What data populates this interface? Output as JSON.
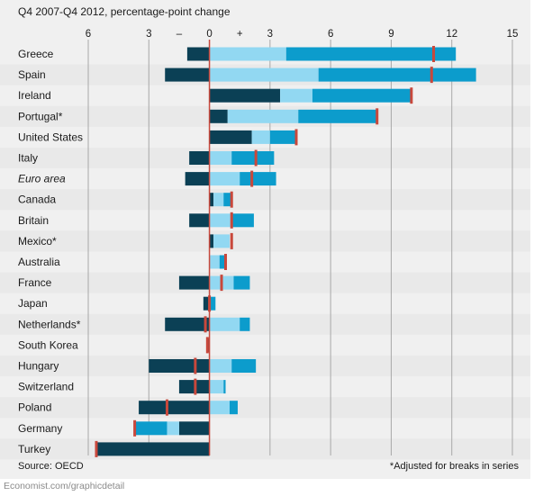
{
  "chart_data": {
    "type": "bar",
    "subtitle": "Q4 2007-Q4 2012, percentage-point change",
    "xlim": [
      -6,
      15
    ],
    "ticks": [
      {
        "value": -6,
        "label": "6"
      },
      {
        "value": -3,
        "label": "3"
      },
      {
        "value": -1.5,
        "label": "–"
      },
      {
        "value": 0,
        "label": "0"
      },
      {
        "value": 1.5,
        "label": "+"
      },
      {
        "value": 3,
        "label": "3"
      },
      {
        "value": 6,
        "label": "6"
      },
      {
        "value": 9,
        "label": "9"
      },
      {
        "value": 12,
        "label": "12"
      },
      {
        "value": 15,
        "label": "15"
      }
    ],
    "grid": true,
    "categories": [
      "Greece",
      "Spain",
      "Ireland",
      "Portugal*",
      "United States",
      "Italy",
      "Euro area",
      "Canada",
      "Britain",
      "Mexico*",
      "Australia",
      "France",
      "Japan",
      "Netherlands*",
      "South Korea",
      "Hungary",
      "Switzerland",
      "Poland",
      "Germany",
      "Turkey"
    ],
    "italic_categories": [
      "Euro area"
    ],
    "series": [
      {
        "values": [
          -1.1,
          -2.2,
          3.5,
          0.9,
          2.1,
          -1.0,
          -1.2,
          0.2,
          -1.0,
          0.2,
          0.0,
          -1.5,
          -0.3,
          -2.2,
          -0.1,
          -3.0,
          -1.5,
          -3.5,
          -1.5,
          -5.6
        ]
      },
      {
        "values": [
          3.8,
          5.4,
          1.6,
          3.5,
          0.9,
          1.1,
          1.5,
          0.5,
          1.1,
          0.8,
          0.5,
          1.2,
          0.0,
          1.5,
          0.0,
          1.1,
          0.7,
          1.0,
          -0.6,
          0.0
        ]
      },
      {
        "values": [
          8.4,
          7.8,
          4.9,
          3.9,
          1.3,
          2.1,
          1.8,
          0.4,
          1.1,
          0.0,
          0.3,
          0.8,
          0.3,
          0.5,
          0.0,
          1.2,
          0.1,
          0.4,
          -1.6,
          0.0
        ]
      }
    ],
    "totals": [
      11.1,
      11.0,
      10.0,
      8.3,
      4.3,
      2.3,
      2.1,
      1.1,
      1.1,
      1.1,
      0.8,
      0.6,
      0.0,
      -0.2,
      -0.1,
      -0.7,
      -0.7,
      -2.1,
      -3.7,
      -5.6
    ],
    "colors": {
      "series": [
        "#0b4055",
        "#92d8f2",
        "#0c9ccc"
      ],
      "total_marker": "#c8483c",
      "zero_line": "#c8483c",
      "grid": "#a8a8a8"
    },
    "source": "Source: OECD",
    "footnote": "*Adjusted for breaks in series",
    "credit": "Economist.com/graphicdetail"
  }
}
